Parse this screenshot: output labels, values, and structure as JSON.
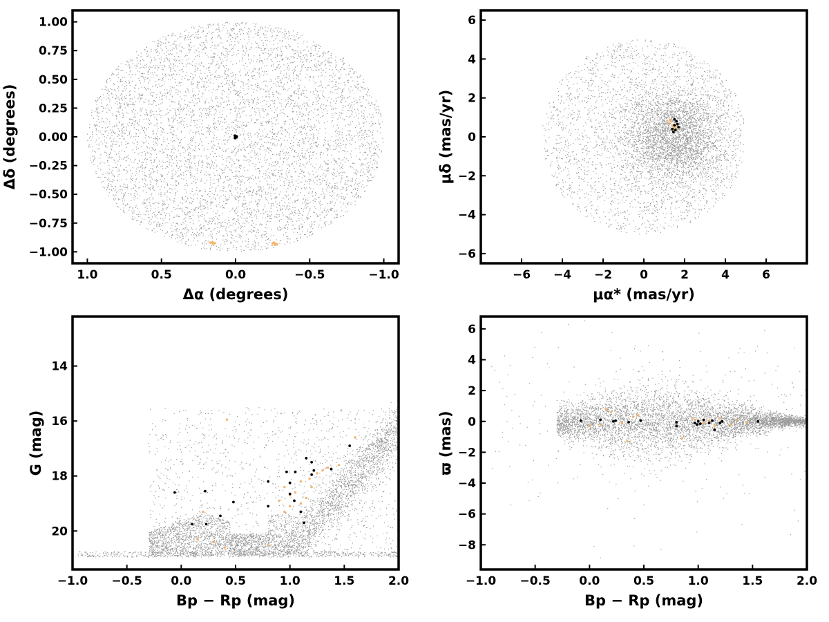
{
  "chart_data": [
    {
      "type": "scatter",
      "panel": "sky-positions",
      "xlabel": "Δα (degrees)",
      "ylabel": "Δδ (degrees)",
      "xlim": [
        1.1,
        -1.1
      ],
      "ylim": [
        -1.1,
        1.1
      ],
      "x_inverted": true,
      "xticks": [
        "1.0",
        "0.5",
        "0.0",
        "−0.5",
        "−1.0"
      ],
      "yticks": [
        "1.00",
        "0.75",
        "0.50",
        "0.25",
        "0.00",
        "−0.25",
        "−0.50",
        "−0.75",
        "−1.00"
      ],
      "xtick_values": [
        1.0,
        0.5,
        0.0,
        -0.5,
        -1.0
      ],
      "ytick_values": [
        1.0,
        0.75,
        0.5,
        0.25,
        0.0,
        -0.25,
        -0.5,
        -0.75,
        -1.0
      ],
      "background_field": {
        "shape": "disk",
        "center": [
          0.0,
          0.0
        ],
        "radius": 1.0,
        "color": "#999999"
      },
      "series": [
        {
          "color": "#f5b26b",
          "points": [
            [
              0.16,
              -0.92
            ],
            [
              0.15,
              -0.93
            ],
            [
              0.17,
              -0.92
            ],
            [
              0.14,
              -0.925
            ],
            [
              0.155,
              -0.915
            ],
            [
              -0.26,
              -0.92
            ],
            [
              -0.27,
              -0.93
            ],
            [
              -0.28,
              -0.935
            ],
            [
              -0.25,
              -0.925
            ],
            [
              -0.265,
              -0.94
            ]
          ]
        },
        {
          "color": "#000000",
          "points": [
            [
              0.0,
              0.0
            ],
            [
              0.005,
              0.01
            ],
            [
              -0.005,
              -0.005
            ],
            [
              0.0,
              0.008
            ],
            [
              -0.008,
              0.003
            ],
            [
              0.004,
              -0.01
            ]
          ]
        }
      ]
    },
    {
      "type": "scatter",
      "panel": "proper-motions",
      "xlabel": "μα* (mas/yr)",
      "ylabel": "μδ (mas/yr)",
      "xlim": [
        -8,
        8
      ],
      "ylim": [
        -6.5,
        6.5
      ],
      "xticks": [
        "−6",
        "−4",
        "−2",
        "0",
        "2",
        "4",
        "6"
      ],
      "yticks": [
        "6",
        "4",
        "2",
        "0",
        "−2",
        "−4",
        "−6"
      ],
      "xtick_values": [
        -6,
        -4,
        -2,
        0,
        2,
        4,
        6
      ],
      "ytick_values": [
        6,
        4,
        2,
        0,
        -2,
        -4,
        -6
      ],
      "background_field": {
        "shape": "disk",
        "center": [
          0.0,
          0.0
        ],
        "radius": 5.0,
        "core_center": [
          1.5,
          0.0
        ],
        "color": "#999999"
      },
      "series": [
        {
          "color": "#f5b26b",
          "points": [
            [
              1.3,
              0.8
            ],
            [
              1.4,
              0.6
            ],
            [
              1.5,
              0.5
            ],
            [
              1.6,
              0.4
            ],
            [
              1.2,
              0.7
            ],
            [
              1.45,
              0.3
            ],
            [
              1.55,
              0.55
            ],
            [
              1.35,
              0.9
            ]
          ]
        },
        {
          "color": "#000000",
          "points": [
            [
              1.4,
              0.4
            ],
            [
              1.5,
              0.6
            ],
            [
              1.6,
              0.8
            ],
            [
              1.7,
              0.5
            ],
            [
              1.45,
              0.25
            ],
            [
              1.55,
              0.35
            ],
            [
              1.65,
              0.65
            ],
            [
              1.5,
              0.9
            ]
          ]
        }
      ]
    },
    {
      "type": "scatter",
      "panel": "color-magnitude",
      "xlabel": "Bp − Rp (mag)",
      "ylabel": "G (mag)",
      "xlim": [
        -1.0,
        2.0
      ],
      "ylim": [
        21.4,
        12.2
      ],
      "y_inverted": true,
      "xticks": [
        "−1.0",
        "−0.5",
        "0.0",
        "0.5",
        "1.0",
        "1.5",
        "2.0"
      ],
      "yticks": [
        "20",
        "18",
        "16",
        "14"
      ],
      "xtick_values": [
        -1.0,
        -0.5,
        0.0,
        0.5,
        1.0,
        1.5,
        2.0
      ],
      "ytick_values": [
        20,
        18,
        16,
        14
      ],
      "series": [
        {
          "color": "#f5b26b",
          "points": [
            [
              0.15,
              20.3
            ],
            [
              0.3,
              20.4
            ],
            [
              0.4,
              20.6
            ],
            [
              0.8,
              20.5
            ],
            [
              0.9,
              18.9
            ],
            [
              0.95,
              19.3
            ],
            [
              1.0,
              19.1
            ],
            [
              1.05,
              18.6
            ],
            [
              1.1,
              18.2
            ],
            [
              1.15,
              18.8
            ],
            [
              1.2,
              18.4
            ],
            [
              1.25,
              17.9
            ],
            [
              1.3,
              17.8
            ],
            [
              1.35,
              17.7
            ],
            [
              1.45,
              17.6
            ],
            [
              1.6,
              16.6
            ],
            [
              0.42,
              15.95
            ],
            [
              0.2,
              19.3
            ],
            [
              1.1,
              19.0
            ],
            [
              1.0,
              18.7
            ],
            [
              0.95,
              18.4
            ],
            [
              1.18,
              18.1
            ]
          ]
        },
        {
          "color": "#000000",
          "points": [
            [
              -0.06,
              18.6
            ],
            [
              0.1,
              19.75
            ],
            [
              0.23,
              19.75
            ],
            [
              0.22,
              18.55
            ],
            [
              0.36,
              19.45
            ],
            [
              0.48,
              18.95
            ],
            [
              0.8,
              19.1
            ],
            [
              0.8,
              18.2
            ],
            [
              0.97,
              17.85
            ],
            [
              1.0,
              18.65
            ],
            [
              1.04,
              18.9
            ],
            [
              1.1,
              19.3
            ],
            [
              1.13,
              19.7
            ],
            [
              1.0,
              18.25
            ],
            [
              1.05,
              17.85
            ],
            [
              1.2,
              17.95
            ],
            [
              1.22,
              17.8
            ],
            [
              1.15,
              17.35
            ],
            [
              1.2,
              17.5
            ],
            [
              1.38,
              17.75
            ],
            [
              1.55,
              16.9
            ]
          ]
        }
      ]
    },
    {
      "type": "scatter",
      "panel": "parallax-vs-color",
      "xlabel": "Bp − Rp (mag)",
      "ylabel": "ϖ (mas)",
      "xlim": [
        -1.0,
        2.0
      ],
      "ylim": [
        -9.6,
        6.8
      ],
      "xticks": [
        "−1.0",
        "−0.5",
        "0.0",
        "0.5",
        "1.0",
        "1.5",
        "2.0"
      ],
      "yticks": [
        "6",
        "4",
        "2",
        "0",
        "−2",
        "−4",
        "−6",
        "−8"
      ],
      "xtick_values": [
        -1.0,
        -0.5,
        0.0,
        0.5,
        1.0,
        1.5,
        2.0
      ],
      "ytick_values": [
        6,
        4,
        2,
        0,
        -2,
        -4,
        -6,
        -8
      ],
      "series": [
        {
          "color": "#f5b26b",
          "points": [
            [
              0.0,
              -0.3
            ],
            [
              0.15,
              0.8
            ],
            [
              0.2,
              0.6
            ],
            [
              0.3,
              -0.1
            ],
            [
              0.4,
              0.3
            ],
            [
              0.45,
              0.4
            ],
            [
              0.85,
              -1.1
            ],
            [
              0.95,
              0.2
            ],
            [
              1.0,
              0.1
            ],
            [
              1.05,
              -0.1
            ],
            [
              1.1,
              0.05
            ],
            [
              1.15,
              -0.3
            ],
            [
              1.2,
              0.2
            ],
            [
              1.3,
              -0.2
            ],
            [
              1.35,
              0.1
            ],
            [
              1.45,
              -0.05
            ],
            [
              0.1,
              -0.2
            ],
            [
              0.35,
              -1.3
            ]
          ]
        },
        {
          "color": "#000000",
          "points": [
            [
              -0.08,
              0.05
            ],
            [
              0.1,
              0.1
            ],
            [
              0.22,
              0.0
            ],
            [
              0.24,
              0.05
            ],
            [
              0.36,
              -0.05
            ],
            [
              0.47,
              0.05
            ],
            [
              0.8,
              -0.05
            ],
            [
              0.8,
              -0.3
            ],
            [
              0.97,
              -0.1
            ],
            [
              1.0,
              0.0
            ],
            [
              1.02,
              -0.15
            ],
            [
              1.05,
              0.1
            ],
            [
              1.1,
              -0.1
            ],
            [
              1.15,
              -0.55
            ],
            [
              1.2,
              -0.1
            ],
            [
              1.22,
              0.0
            ],
            [
              1.55,
              0.0
            ],
            [
              0.99,
              -0.2
            ],
            [
              1.13,
              0.05
            ]
          ]
        }
      ]
    }
  ]
}
